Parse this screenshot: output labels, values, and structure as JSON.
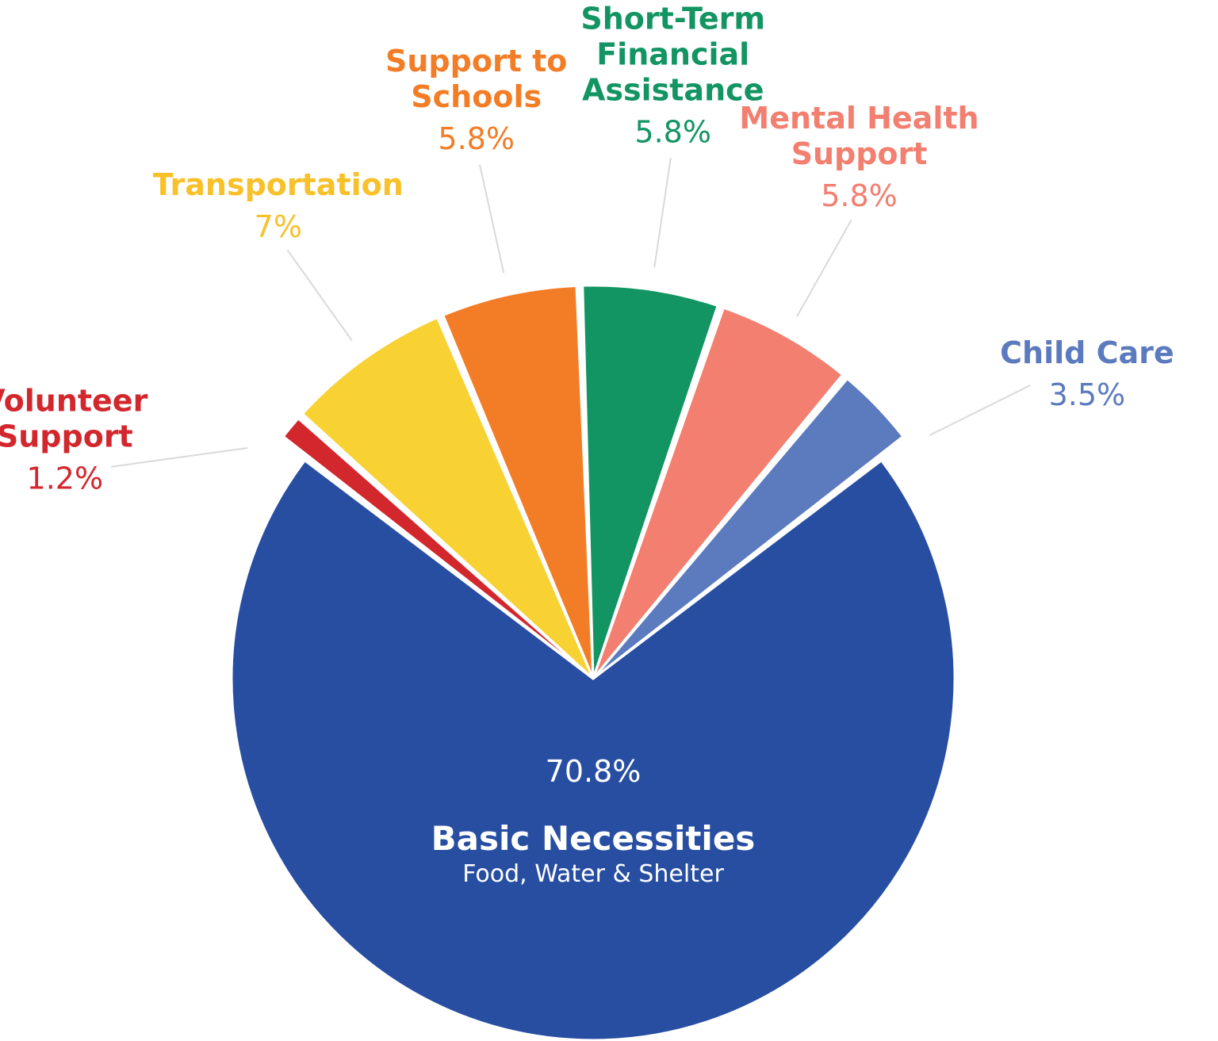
{
  "chart_data": {
    "type": "pie",
    "slices": [
      {
        "name": "Basic Necessities",
        "subtitle": "Food, Water & Shelter",
        "value": 70.8,
        "value_label": "70.8%",
        "color": "#284EA2"
      },
      {
        "name": "Volunteer Support",
        "value": 1.2,
        "value_label": "1.2%",
        "color": "#D2272D"
      },
      {
        "name": "Transportation",
        "value": 7,
        "value_label": "7%",
        "color": "#F8D133"
      },
      {
        "name": "Support to Schools",
        "value": 5.8,
        "value_label": "5.8%",
        "color": "#F37D26"
      },
      {
        "name": "Short-Term Financial Assistance",
        "value": 5.8,
        "value_label": "5.8%",
        "color": "#129562"
      },
      {
        "name": "Mental Health Support",
        "value": 5.8,
        "value_label": "5.8%",
        "color": "#F27F70"
      },
      {
        "name": "Child Care",
        "value": 3.5,
        "value_label": "3.5%",
        "color": "#5C7ABE"
      }
    ],
    "label_lines": {
      "Volunteer Support": [
        "Volunteer",
        "Support"
      ],
      "Transportation": [
        "Transportation"
      ],
      "Support to Schools": [
        "Support to",
        "Schools"
      ],
      "Short-Term Financial Assistance": [
        "Short-Term",
        "Financial",
        "Assistance"
      ],
      "Mental Health Support": [
        "Mental Health",
        "Support"
      ],
      "Child Care": [
        "Child Care"
      ]
    },
    "label_colors": {
      "Volunteer Support": "#D2272D",
      "Transportation": "#F8C12A",
      "Support to Schools": "#F37D26",
      "Short-Term Financial Assistance": "#129562",
      "Mental Health Support": "#F27F70",
      "Child Care": "#5C7ABE"
    },
    "legend": "none"
  }
}
